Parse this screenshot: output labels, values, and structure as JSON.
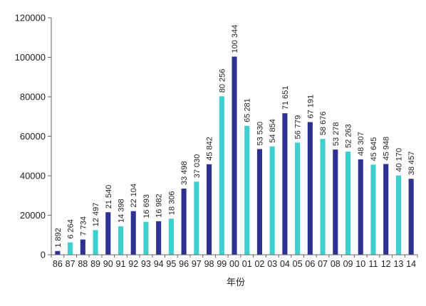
{
  "chart_data": {
    "type": "bar",
    "title": "",
    "xlabel": "年份",
    "ylabel": "",
    "ylim": [
      0,
      120000
    ],
    "yticks": [
      0,
      20000,
      40000,
      60000,
      80000,
      100000,
      120000
    ],
    "ytick_labels": [
      "0",
      "20000",
      "40000",
      "60000",
      "80000",
      "100000",
      "120000"
    ],
    "grid": false,
    "legend": "none",
    "categories": [
      "86",
      "87",
      "88",
      "89",
      "90",
      "91",
      "92",
      "93",
      "94",
      "95",
      "96",
      "97",
      "98",
      "99",
      "00",
      "01",
      "02",
      "03",
      "04",
      "05",
      "06",
      "07",
      "08",
      "09",
      "10",
      "11",
      "12",
      "13",
      "14"
    ],
    "values": [
      1892,
      6264,
      7734,
      12497,
      21540,
      14398,
      22104,
      16693,
      16982,
      18306,
      33498,
      37030,
      45842,
      80256,
      100344,
      65281,
      53530,
      54854,
      71651,
      56779,
      67191,
      58676,
      53278,
      52263,
      48307,
      45645,
      45948,
      40170,
      38457
    ],
    "value_labels": [
      "1 892",
      "6 264",
      "7 734",
      "12 497",
      "21 540",
      "14 398",
      "22 104",
      "16 693",
      "16 982",
      "18 306",
      "33 498",
      "37 030",
      "45 842",
      "80 256",
      "100 344",
      "65 281",
      "53 530",
      "54 854",
      "71 651",
      "56 779",
      "67 191",
      "58 676",
      "53 278",
      "52 263",
      "48 307",
      "45 645",
      "45 948",
      "40 170",
      "38 457"
    ],
    "bar_colors": [
      "#2e3192",
      "#3ecfcf",
      "#2e3192",
      "#3ecfcf",
      "#2e3192",
      "#3ecfcf",
      "#2e3192",
      "#3ecfcf",
      "#2e3192",
      "#3ecfcf",
      "#2e3192",
      "#3ecfcf",
      "#2e3192",
      "#3ecfcf",
      "#2e3192",
      "#3ecfcf",
      "#2e3192",
      "#3ecfcf",
      "#2e3192",
      "#3ecfcf",
      "#2e3192",
      "#3ecfcf",
      "#2e3192",
      "#3ecfcf",
      "#2e3192",
      "#3ecfcf",
      "#2e3192",
      "#3ecfcf",
      "#2e3192"
    ],
    "axis_color": "#666666"
  }
}
